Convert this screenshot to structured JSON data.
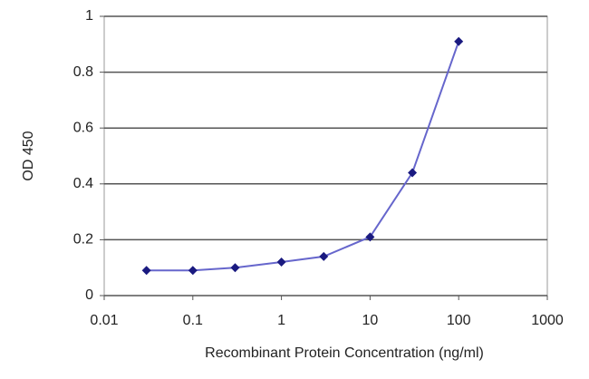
{
  "chart_data": {
    "type": "line",
    "xlabel": "Recombinant Protein Concentration (ng/ml)",
    "ylabel": "OD 450",
    "x": [
      0.03,
      0.1,
      0.3,
      1,
      3,
      10,
      30,
      100
    ],
    "values": [
      0.09,
      0.09,
      0.1,
      0.12,
      0.14,
      0.21,
      0.44,
      0.91
    ],
    "color": "#6666cc",
    "marker_color": "#1a1a80",
    "xscale": "log",
    "xlim": [
      0.01,
      1000
    ],
    "xticks": [
      0.01,
      0.1,
      1,
      10,
      100,
      1000
    ],
    "ylim": [
      0,
      1
    ],
    "yticks": [
      0,
      0.2,
      0.4,
      0.6,
      0.8,
      1
    ],
    "grid": true
  }
}
